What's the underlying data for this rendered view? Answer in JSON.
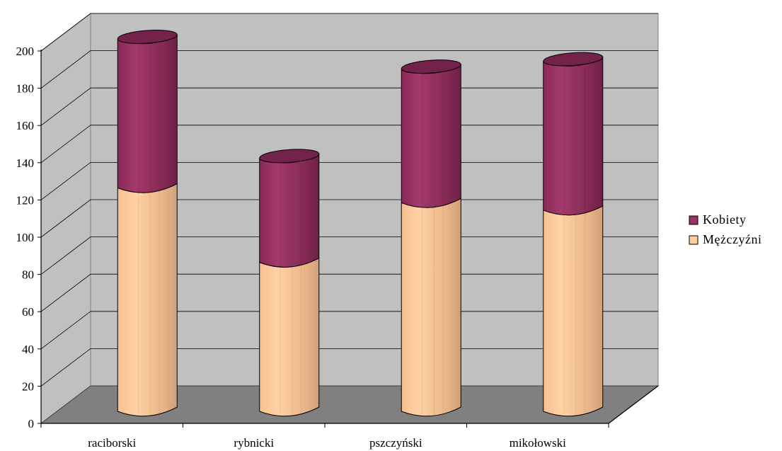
{
  "chart_data": {
    "type": "bar",
    "stacked": true,
    "style": "3d-cylinder",
    "title": "",
    "xlabel": "",
    "ylabel": "",
    "ylim": [
      0,
      200
    ],
    "yticks": [
      0,
      20,
      40,
      60,
      80,
      100,
      120,
      140,
      160,
      180,
      200
    ],
    "grid": true,
    "legend_position": "right",
    "categories": [
      "raciborski",
      "rybnicki",
      "pszczyński",
      "mikołowski"
    ],
    "series": [
      {
        "name": "Mężczyźni",
        "color": "#FFCC99",
        "values": [
          120,
          80,
          112,
          108
        ]
      },
      {
        "name": "Kobiety",
        "color": "#993366",
        "values": [
          80,
          56,
          72,
          80
        ]
      }
    ]
  }
}
